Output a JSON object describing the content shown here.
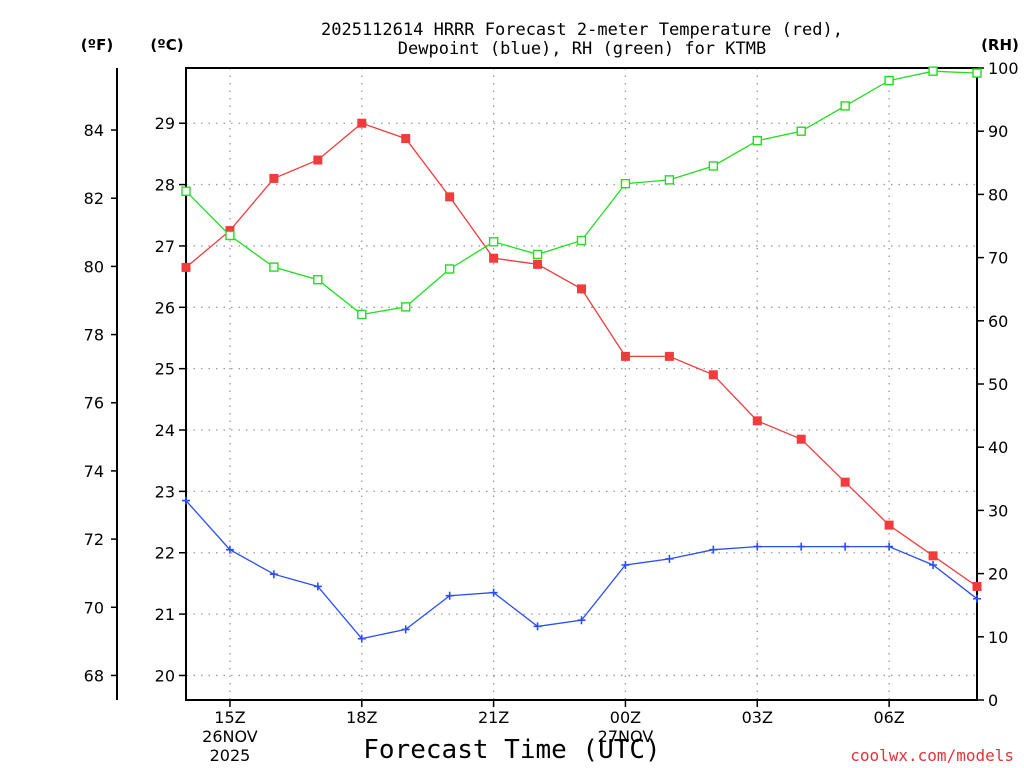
{
  "chart_data": {
    "type": "line",
    "title_line1": "2025112614 HRRR Forecast 2-meter Temperature (red),",
    "title_line2": "Dewpoint (blue), RH (green) for KTMB",
    "xlabel": "Forecast Time (UTC)",
    "credit": "coolwx.com/models",
    "units": {
      "fahrenheit": "(ºF)",
      "celsius": "(ºC)",
      "rh": "(RH)"
    },
    "x": [
      14,
      15,
      16,
      17,
      18,
      19,
      20,
      21,
      22,
      23,
      24,
      25,
      26,
      27,
      28,
      29,
      30,
      31,
      32
    ],
    "xlim": [
      14,
      32
    ],
    "x_ticks": [
      {
        "x": 15,
        "label": "15Z",
        "date": "26NOV",
        "year": "2025"
      },
      {
        "x": 18,
        "label": "18Z",
        "date": "",
        "year": ""
      },
      {
        "x": 21,
        "label": "21Z",
        "date": "",
        "year": ""
      },
      {
        "x": 24,
        "label": "00Z",
        "date": "27NOV",
        "year": ""
      },
      {
        "x": 27,
        "label": "03Z",
        "date": "",
        "year": ""
      },
      {
        "x": 30,
        "label": "06Z",
        "date": "",
        "year": ""
      }
    ],
    "ylim_celsius": [
      19.6,
      29.9
    ],
    "ylim_rh": [
      0,
      100
    ],
    "celsius_ticks": [
      "20",
      "21",
      "22",
      "23",
      "24",
      "25",
      "26",
      "27",
      "28",
      "29"
    ],
    "fahrenheit_ticks": [
      "68",
      "70",
      "72",
      "74",
      "76",
      "78",
      "80",
      "82",
      "84"
    ],
    "rh_ticks": [
      "0",
      "10",
      "20",
      "30",
      "40",
      "50",
      "60",
      "70",
      "80",
      "90",
      "100"
    ],
    "grid": true,
    "series": [
      {
        "name": "Temperature",
        "axis": "celsius",
        "color": "#f03c3c",
        "marker": "filled-square",
        "values": [
          26.65,
          27.25,
          28.1,
          28.4,
          29.0,
          28.75,
          27.8,
          26.8,
          26.7,
          26.3,
          25.2,
          25.2,
          24.9,
          24.15,
          23.85,
          23.15,
          22.45,
          21.95,
          21.45
        ]
      },
      {
        "name": "Dewpoint",
        "axis": "celsius",
        "color": "#2b4ef2",
        "marker": "plus",
        "values": [
          22.85,
          22.05,
          21.65,
          21.45,
          20.6,
          20.75,
          21.3,
          21.35,
          20.8,
          20.9,
          21.8,
          21.9,
          22.05,
          22.1,
          22.1,
          22.1,
          22.1,
          21.8,
          21.25
        ]
      },
      {
        "name": "RH",
        "axis": "rh",
        "color": "#22dd22",
        "marker": "open-square",
        "values": [
          80.5,
          73.5,
          68.5,
          66.5,
          61.0,
          62.2,
          68.2,
          72.5,
          70.5,
          72.7,
          81.7,
          82.3,
          84.5,
          88.5,
          90.0,
          94.0,
          98.0,
          99.5,
          99.2
        ]
      }
    ]
  }
}
